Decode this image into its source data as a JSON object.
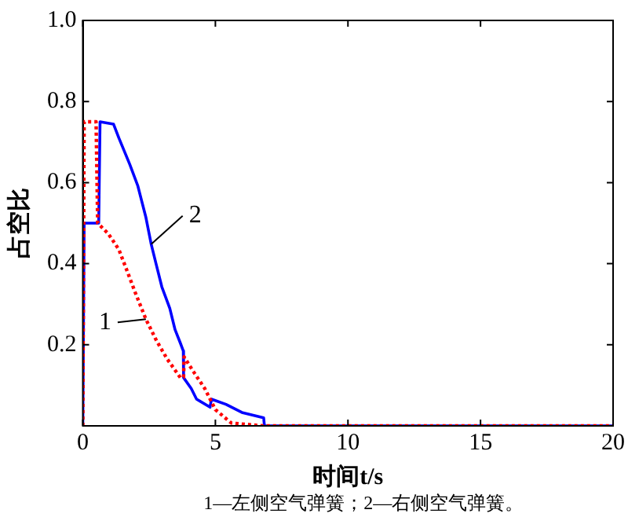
{
  "chart_data": {
    "type": "line",
    "xlabel": "时间t/s",
    "ylabel": "占空比",
    "xlim": [
      0,
      20
    ],
    "xticks": [
      0,
      5,
      10,
      15,
      20
    ],
    "ylim": [
      0,
      1
    ],
    "yticks": [
      {
        "value": 0,
        "label": null
      },
      0.2,
      0.4,
      0.6,
      0.8,
      {
        "value": 1,
        "label": "1.0"
      }
    ],
    "grid": false,
    "legend": false,
    "marker": "none",
    "annotations": [
      "1—左侧空气弹簧；2—右侧空气弹簧。"
    ],
    "series": [
      {
        "name": "1",
        "color": "#ff0000",
        "line_style": "dotted",
        "x": [
          0,
          0.05,
          0.5,
          0.56,
          0.96,
          1.36,
          1.67,
          1.97,
          2.38,
          2.78,
          3.18,
          3.68,
          3.8,
          3.82,
          4.19,
          4.6,
          5.0,
          5.6,
          6.8,
          20
        ],
        "values": [
          0,
          0.75,
          0.75,
          0.5,
          0.474,
          0.435,
          0.382,
          0.33,
          0.263,
          0.21,
          0.165,
          0.119,
          0.12,
          0.17,
          0.132,
          0.092,
          0.04,
          0.007,
          0,
          0
        ]
      },
      {
        "name": "2",
        "color": "#0000ff",
        "line_style": "solid",
        "x": [
          0,
          0.05,
          0.6,
          0.65,
          1.16,
          1.36,
          1.77,
          2.07,
          2.38,
          2.58,
          2.78,
          2.98,
          3.28,
          3.48,
          3.68,
          3.79,
          3.8,
          4.09,
          4.29,
          4.8,
          4.85,
          5.4,
          6.0,
          6.82,
          6.85,
          20
        ],
        "values": [
          0,
          0.5,
          0.5,
          0.75,
          0.744,
          0.71,
          0.645,
          0.593,
          0.514,
          0.448,
          0.395,
          0.343,
          0.29,
          0.237,
          0.204,
          0.185,
          0.119,
          0.092,
          0.066,
          0.046,
          0.066,
          0.053,
          0.033,
          0.02,
          0,
          0
        ]
      }
    ]
  }
}
